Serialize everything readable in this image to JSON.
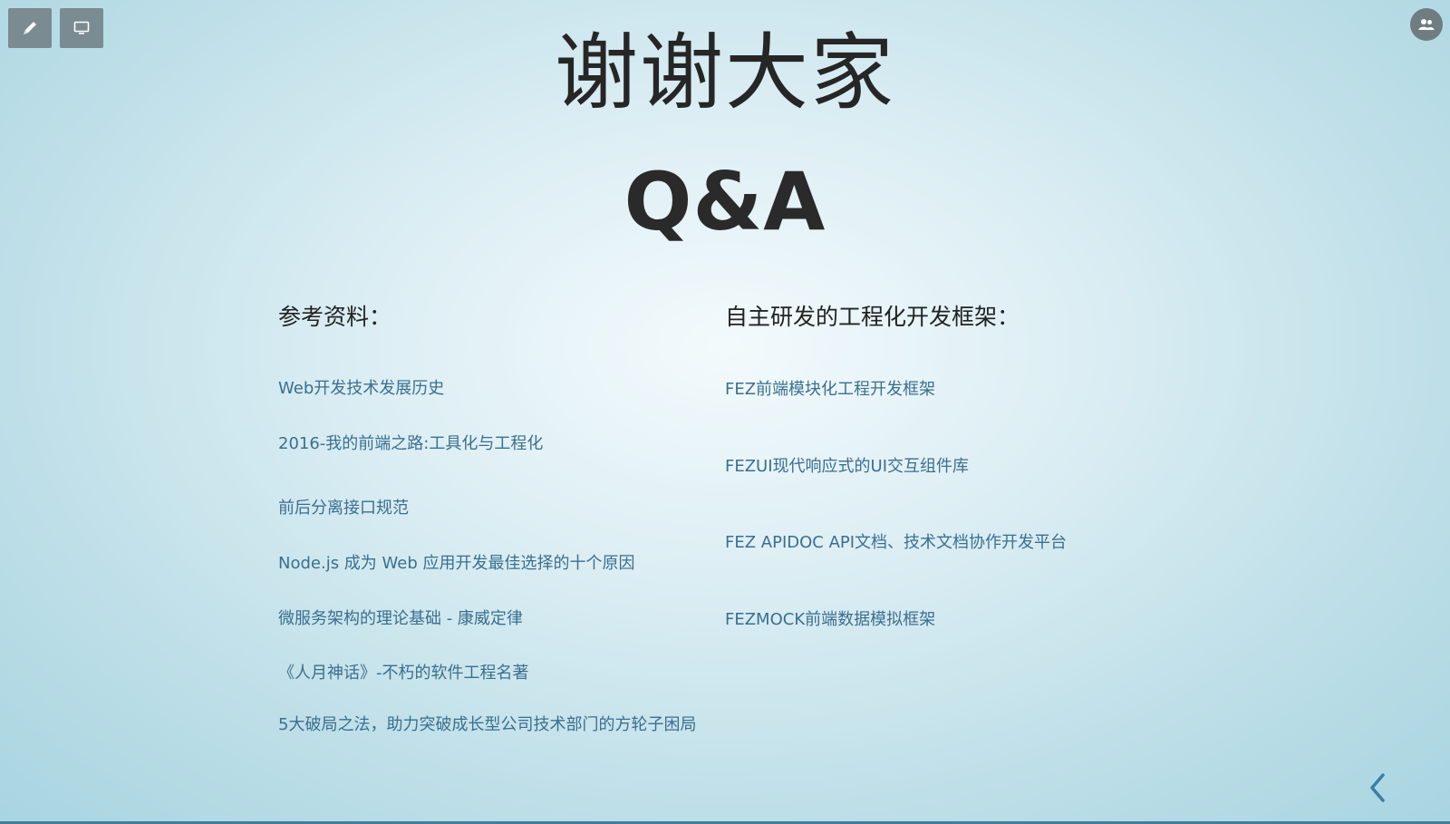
{
  "toolbar": {
    "pen_icon": "pencil-icon",
    "screen_icon": "monitor-icon",
    "people_icon": "people-icon"
  },
  "slide": {
    "title": "谢谢大家",
    "subtitle": "Q&A",
    "left_column": {
      "heading": "参考资料：",
      "links": [
        "Web开发技术发展历史",
        "2016-我的前端之路:工具化与工程化",
        "前后分离接口规范",
        "Node.js 成为 Web 应用开发最佳选择的十个原因",
        "微服务架构的理论基础 - 康威定律",
        "《人月神话》-不朽的软件工程名著",
        "5大破局之法，助力突破成长型公司技术部门的方轮子困局"
      ]
    },
    "right_column": {
      "heading": "自主研发的工程化开发框架：",
      "links": [
        "FEZ前端模块化工程开发框架",
        "FEZUI现代响应式的UI交互组件库",
        "FEZ APIDOC API文档、技术文档协作开发平台",
        "FEZMOCK前端数据模拟框架"
      ]
    }
  },
  "navigation": {
    "back_icon": "chevron-left-icon"
  },
  "colors": {
    "link": "#3a6f8e",
    "accent_bar": "#3f7f9c",
    "toolbar_button": "#7a8b91"
  }
}
